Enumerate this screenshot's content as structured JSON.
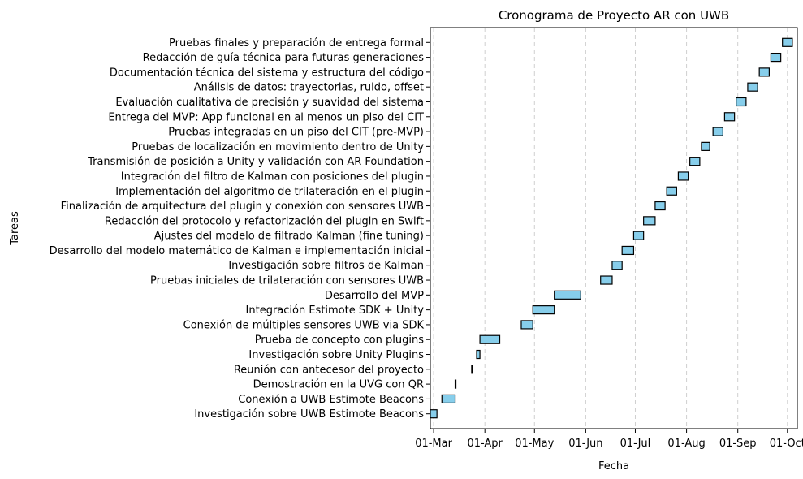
{
  "chart_data": {
    "type": "gantt",
    "title": "Cronograma de Proyecto AR con UWB",
    "xlabel": "Fecha",
    "ylabel": "Tareas",
    "x_ticks": [
      "01-Mar",
      "01-Apr",
      "01-May",
      "01-Jun",
      "01-Jul",
      "01-Aug",
      "01-Sep",
      "01-Oct"
    ],
    "x_range": [
      "2024-02-28",
      "2024-10-07"
    ],
    "grid": "vertical dashed",
    "bar_color": "#87ceeb",
    "edge_color": "#000000",
    "tasks": [
      {
        "name": "Investigación sobre UWB Estimote Beacons",
        "start": "2024-02-28",
        "end": "2024-03-03"
      },
      {
        "name": "Conexión a UWB Estimote Beacons",
        "start": "2024-03-06",
        "end": "2024-03-14"
      },
      {
        "name": "Demostración en la UVG con QR",
        "start": "2024-03-14",
        "end": "2024-03-14"
      },
      {
        "name": "Reunión con antecesor del proyecto",
        "start": "2024-03-24",
        "end": "2024-03-24"
      },
      {
        "name": "Investigación sobre Unity Plugins",
        "start": "2024-03-27",
        "end": "2024-03-29"
      },
      {
        "name": "Prueba de concepto con plugins",
        "start": "2024-03-29",
        "end": "2024-04-10"
      },
      {
        "name": "Conexión de múltiples sensores UWB via SDK",
        "start": "2024-04-23",
        "end": "2024-04-30"
      },
      {
        "name": "Integración Estimote SDK + Unity",
        "start": "2024-04-30",
        "end": "2024-05-13"
      },
      {
        "name": "Desarrollo del MVP",
        "start": "2024-05-13",
        "end": "2024-05-29"
      },
      {
        "name": "Pruebas iniciales de trilateración con sensores UWB",
        "start": "2024-06-10",
        "end": "2024-06-17"
      },
      {
        "name": "Investigación sobre filtros de Kalman",
        "start": "2024-06-17",
        "end": "2024-06-23"
      },
      {
        "name": "Desarrollo del modelo matemático de Kalman e implementación inicial",
        "start": "2024-06-23",
        "end": "2024-06-30"
      },
      {
        "name": "Ajustes del modelo de filtrado Kalman (fine tuning)",
        "start": "2024-06-30",
        "end": "2024-07-06"
      },
      {
        "name": "Redacción del protocolo y refactorización del plugin en Swift",
        "start": "2024-07-06",
        "end": "2024-07-13"
      },
      {
        "name": "Finalización de arquitectura del plugin y conexión con sensores UWB",
        "start": "2024-07-13",
        "end": "2024-07-19"
      },
      {
        "name": "Implementación del algoritmo de trilateración en el plugin",
        "start": "2024-07-20",
        "end": "2024-07-26"
      },
      {
        "name": "Integración del filtro de Kalman con posiciones del plugin",
        "start": "2024-07-27",
        "end": "2024-08-02"
      },
      {
        "name": "Transmisión de posición a Unity y validación con AR Foundation",
        "start": "2024-08-03",
        "end": "2024-08-09"
      },
      {
        "name": "Pruebas de localización en movimiento dentro de Unity",
        "start": "2024-08-10",
        "end": "2024-08-15"
      },
      {
        "name": "Pruebas integradas en un piso del CIT (pre-MVP)",
        "start": "2024-08-17",
        "end": "2024-08-23"
      },
      {
        "name": "Entrega del MVP: App funcional en al menos un piso del CIT",
        "start": "2024-08-24",
        "end": "2024-08-30"
      },
      {
        "name": "Evaluación cualitativa de precisión y suavidad del sistema",
        "start": "2024-08-31",
        "end": "2024-09-06"
      },
      {
        "name": "Análisis de datos: trayectorias, ruido, offset",
        "start": "2024-09-07",
        "end": "2024-09-13"
      },
      {
        "name": "Documentación técnica del sistema y estructura del código",
        "start": "2024-09-14",
        "end": "2024-09-20"
      },
      {
        "name": "Redacción de guía técnica para futuras generaciones",
        "start": "2024-09-21",
        "end": "2024-09-27"
      },
      {
        "name": "Pruebas finales y preparación de entrega formal",
        "start": "2024-09-28",
        "end": "2024-10-04"
      }
    ]
  }
}
